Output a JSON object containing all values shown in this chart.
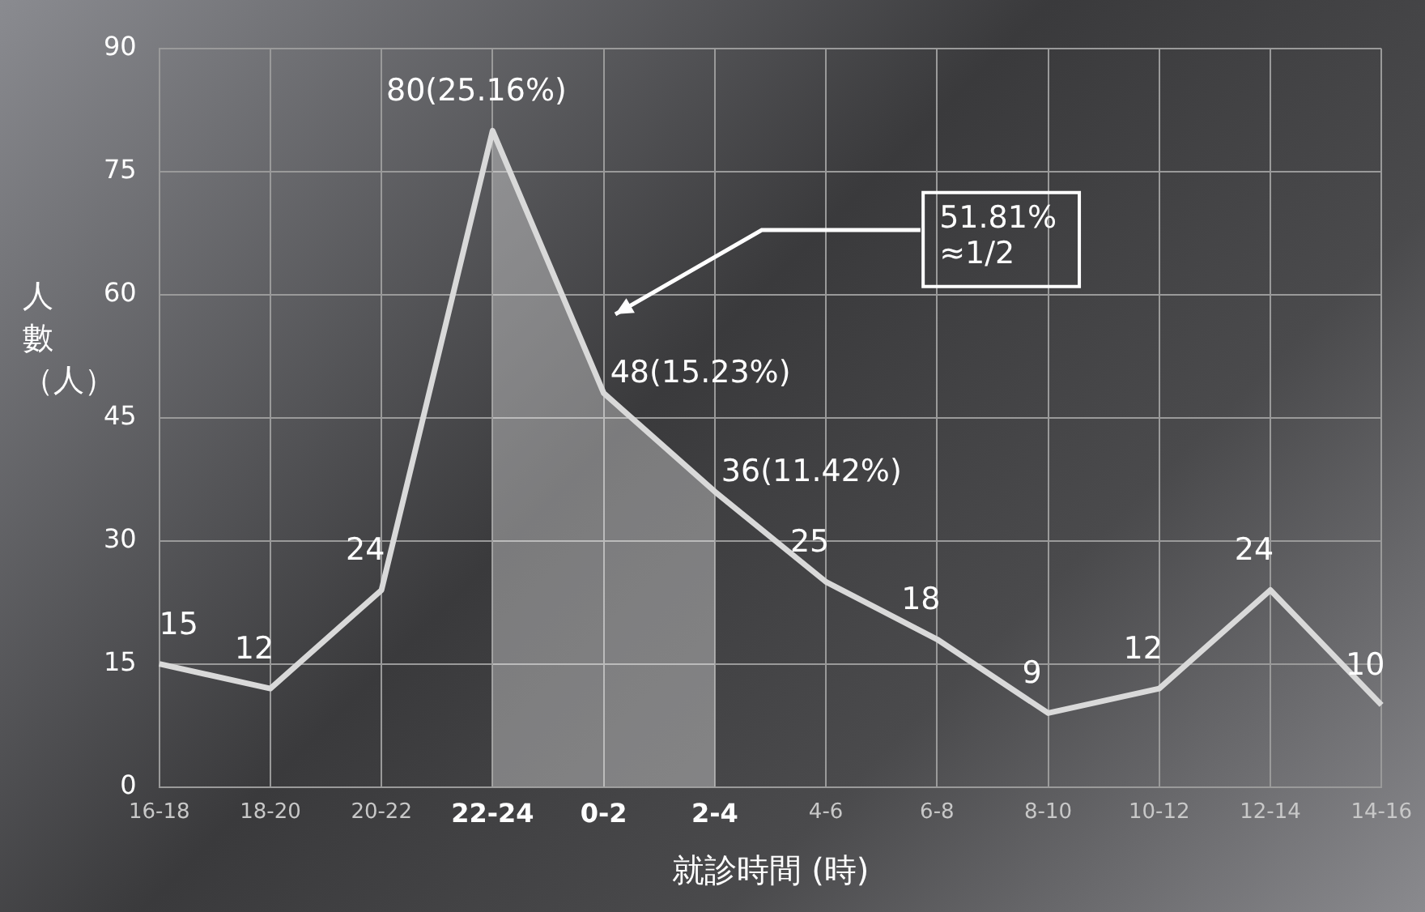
{
  "chart_data": {
    "type": "line",
    "xlabel": "就診時間 (時)",
    "ylabel": "人數（人）",
    "categories": [
      "16-18",
      "18-20",
      "20-22",
      "22-24",
      "0-2",
      "2-4",
      "4-6",
      "6-8",
      "8-10",
      "10-12",
      "12-14",
      "14-16"
    ],
    "values": [
      15,
      12,
      24,
      80,
      48,
      36,
      25,
      18,
      9,
      12,
      24,
      10
    ],
    "value_labels": [
      "15",
      "12",
      "24",
      "80(25.16%)",
      "48(15.23%)",
      "36(11.42%)",
      "25",
      "18",
      "9",
      "12",
      "24",
      "10"
    ],
    "color": "#d9d9d9",
    "ylim": [
      0,
      90
    ],
    "yticks": [
      0,
      15,
      30,
      45,
      60,
      75,
      90
    ],
    "grid": true,
    "legend": false,
    "marker": "none",
    "line_style": "solid",
    "series": [
      {
        "type": "area",
        "color": "#ffffff",
        "values": [
          null,
          null,
          null,
          80,
          48,
          36,
          null,
          null,
          null,
          null,
          null,
          null
        ]
      }
    ],
    "annotations": [
      "51.81%\n≈1/2"
    ]
  }
}
